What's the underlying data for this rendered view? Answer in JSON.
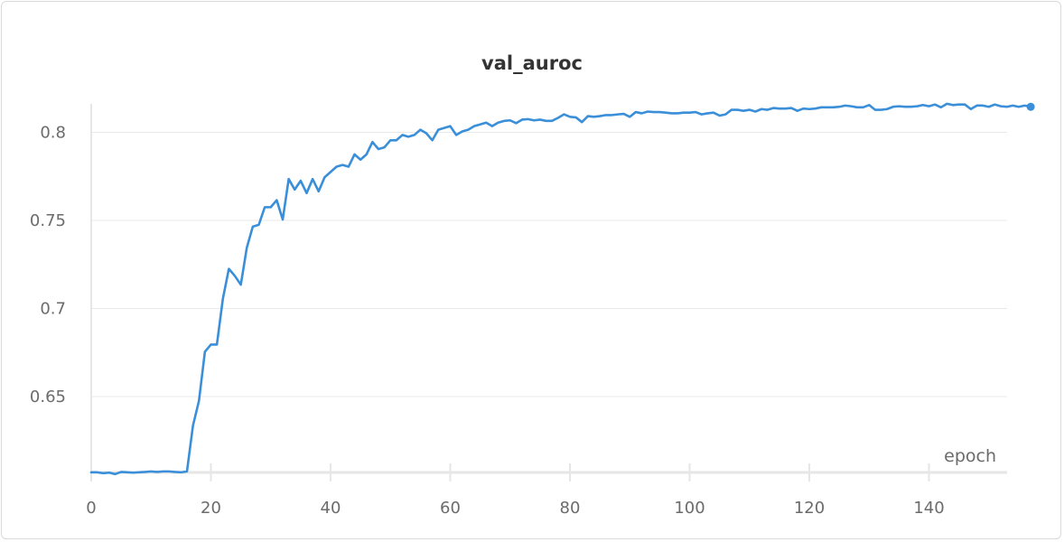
{
  "chart_data": {
    "type": "line",
    "title": "val_auroc",
    "xlabel": "epoch",
    "ylabel": "",
    "xlim": [
      0,
      155
    ],
    "ylim": [
      0.6,
      0.82
    ],
    "x_ticks": [
      0,
      20,
      40,
      60,
      80,
      100,
      120,
      140
    ],
    "y_ticks": [
      0.65,
      0.7,
      0.75,
      0.8
    ],
    "grid": true,
    "color": "#3a8fd8",
    "series": [
      {
        "values": [
          0.607,
          0.607,
          0.6065,
          0.6068,
          0.606,
          0.6072,
          0.607,
          0.6068,
          0.607,
          0.6072,
          0.6075,
          0.6072,
          0.6075,
          0.6075,
          0.6072,
          0.607,
          0.6075,
          0.6335,
          0.6475,
          0.6755,
          0.6795,
          0.6795,
          0.7055,
          0.7225,
          0.7185,
          0.7135,
          0.7345,
          0.7465,
          0.7475,
          0.7575,
          0.7575,
          0.7615,
          0.7505,
          0.7735,
          0.7675,
          0.7725,
          0.7655,
          0.7735,
          0.7665,
          0.7745,
          0.7775,
          0.7805,
          0.7815,
          0.7805,
          0.7875,
          0.7845,
          0.7875,
          0.7945,
          0.7905,
          0.7915,
          0.7955,
          0.7955,
          0.7985,
          0.7975,
          0.7985,
          0.8015,
          0.7995,
          0.7955,
          0.8015,
          0.8025,
          0.8035,
          0.7985,
          0.8005,
          0.8015,
          0.8035,
          0.8045,
          0.8055,
          0.8035,
          0.8055,
          0.8065,
          0.8068,
          0.8052,
          0.8072,
          0.8075,
          0.8068,
          0.8072,
          0.8065,
          0.8065,
          0.8082,
          0.8102,
          0.8088,
          0.8085,
          0.8058,
          0.8092,
          0.8088,
          0.8092,
          0.8098,
          0.8098,
          0.8102,
          0.8105,
          0.8088,
          0.8115,
          0.8108,
          0.8118,
          0.8115,
          0.8115,
          0.8112,
          0.8108,
          0.8108,
          0.8112,
          0.8112,
          0.8115,
          0.8102,
          0.8108,
          0.8112,
          0.8095,
          0.8102,
          0.8128,
          0.8128,
          0.8122,
          0.8128,
          0.8118,
          0.8132,
          0.8128,
          0.8138,
          0.8135,
          0.8135,
          0.8138,
          0.8122,
          0.8135,
          0.8132,
          0.8135,
          0.8142,
          0.8142,
          0.8142,
          0.8145,
          0.8152,
          0.8148,
          0.8142,
          0.8142,
          0.8155,
          0.8128,
          0.8128,
          0.8132,
          0.8145,
          0.8148,
          0.8145,
          0.8145,
          0.8148,
          0.8155,
          0.8148,
          0.8158,
          0.8142,
          0.8162,
          0.8155,
          0.8158,
          0.8158,
          0.8132,
          0.8152,
          0.8152,
          0.8145,
          0.8158,
          0.8148,
          0.8145,
          0.8152,
          0.8145,
          0.8152,
          0.8145
        ]
      }
    ]
  }
}
